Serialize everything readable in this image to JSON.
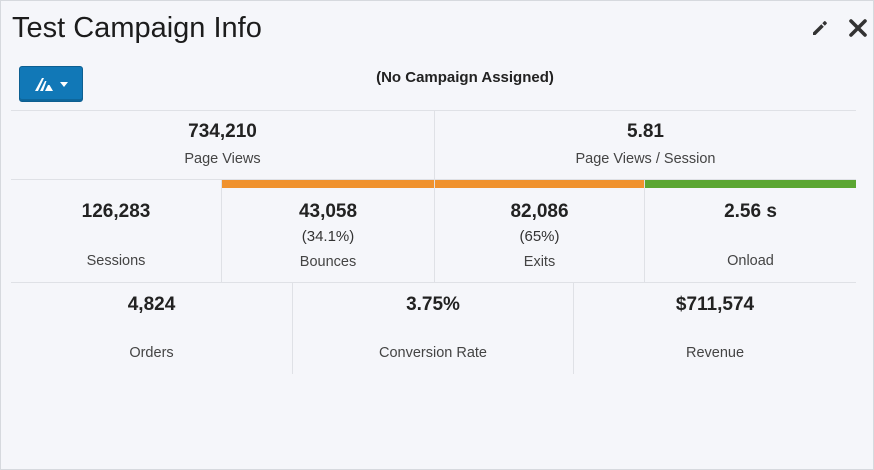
{
  "header": {
    "title": "Test Campaign Info",
    "edit_icon": "pencil-icon",
    "close_icon": "close-icon"
  },
  "campaign": {
    "button_icon": "campaign-logo-icon",
    "status": "(No Campaign Assigned)"
  },
  "metrics_top": [
    {
      "value": "734,210",
      "label": "Page Views"
    },
    {
      "value": "5.81",
      "label": "Page Views / Session"
    }
  ],
  "metrics_middle": [
    {
      "value": "126,283",
      "label": "Sessions"
    },
    {
      "value": "43,058",
      "sub": "(34.1%)",
      "label": "Bounces",
      "bar_color": "#f0922e"
    },
    {
      "value": "82,086",
      "sub": "(65%)",
      "label": "Exits",
      "bar_color": "#f0922e"
    },
    {
      "value": "2.56 s",
      "label": "Onload",
      "bar_color": "#5ba632"
    }
  ],
  "metrics_bottom": [
    {
      "value": "4,824",
      "label": "Orders"
    },
    {
      "value": "3.75%",
      "label": "Conversion Rate"
    },
    {
      "value": "$711,574",
      "label": "Revenue"
    }
  ],
  "colors": {
    "accent_button": "#1178b7",
    "warning_bar": "#f0922e",
    "good_bar": "#5ba632"
  }
}
